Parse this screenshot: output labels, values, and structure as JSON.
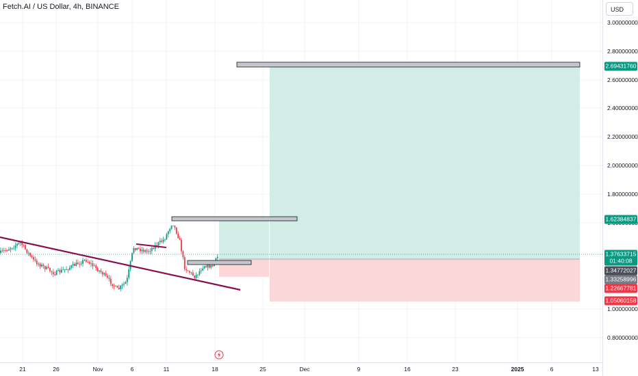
{
  "header": {
    "symbol_title": "Fetch.AI / US Dollar, 4h, BINANCE",
    "currency_button": "USD"
  },
  "price_axis": {
    "ticks": [
      "3.00000000",
      "2.80000000",
      "2.60000000",
      "2.40000000",
      "2.20000000",
      "2.00000000",
      "1.80000000",
      "1.60000000",
      "1.00000000",
      "0.80000000"
    ],
    "labels": [
      {
        "text": "2.69431760",
        "color": "#089981"
      },
      {
        "text": "1.62384837",
        "color": "#089981"
      },
      {
        "text": "1.37633715",
        "color": "#089981"
      },
      {
        "text": "01:40:08",
        "color": "#089981"
      },
      {
        "text": "1.34772027",
        "color": "#4a4e58"
      },
      {
        "text": "1.33258996",
        "color": "#787b86"
      },
      {
        "text": "1.22667781",
        "color": "#f23645"
      },
      {
        "text": "1.05060158",
        "color": "#f23645"
      }
    ]
  },
  "time_axis": {
    "ticks": [
      {
        "label": "21",
        "bold": false
      },
      {
        "label": "26",
        "bold": false
      },
      {
        "label": "Nov",
        "bold": false
      },
      {
        "label": "6",
        "bold": false
      },
      {
        "label": "11",
        "bold": false
      },
      {
        "label": "18",
        "bold": false
      },
      {
        "label": "25",
        "bold": false
      },
      {
        "label": "Dec",
        "bold": false
      },
      {
        "label": "9",
        "bold": false
      },
      {
        "label": "16",
        "bold": false
      },
      {
        "label": "23",
        "bold": false
      },
      {
        "label": "2025",
        "bold": true
      },
      {
        "label": "6",
        "bold": false
      },
      {
        "label": "13",
        "bold": false
      }
    ]
  },
  "colors": {
    "bull": "#089981",
    "bear": "#f23645",
    "trendline": "#880e4f",
    "target_zone": "#d1ede6",
    "stop_zone": "#fbd7d9",
    "grid": "#f0f3fa"
  },
  "icons": {
    "event_marker": "lightning-icon"
  }
}
